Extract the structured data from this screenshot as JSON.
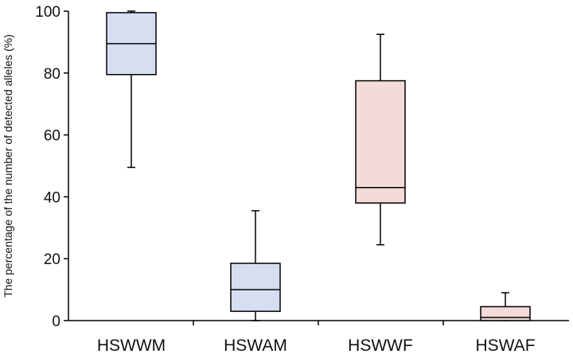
{
  "chart_data": {
    "type": "box",
    "title": "",
    "xlabel": "",
    "ylabel": "The percentage of the number of detected alleles (%)",
    "ylim": [
      0,
      100
    ],
    "yticks": [
      0,
      20,
      40,
      60,
      80,
      100
    ],
    "grid": false,
    "legend": "none",
    "categories": [
      "HSWWM",
      "HSWAM",
      "HSWWF",
      "HSWAF"
    ],
    "boxes": [
      {
        "category": "HSWWM",
        "min": 49.5,
        "q1": 79.5,
        "median": 89.5,
        "q3": 99.5,
        "max": 100,
        "fill": "#d6dff2"
      },
      {
        "category": "HSWAM",
        "min": 0,
        "q1": 3,
        "median": 10,
        "q3": 18.5,
        "max": 35.5,
        "fill": "#d6dff2"
      },
      {
        "category": "HSWWF",
        "min": 24.5,
        "q1": 38,
        "median": 43,
        "q3": 77.5,
        "max": 92.5,
        "fill": "#f5dada"
      },
      {
        "category": "HSWAF",
        "min": 0,
        "q1": 0,
        "median": 1,
        "q3": 4.5,
        "max": 9,
        "fill": "#f5dada"
      }
    ],
    "colors": {
      "male_box": "#d6dff2",
      "female_box": "#f5dada",
      "stroke": "#000000"
    }
  }
}
